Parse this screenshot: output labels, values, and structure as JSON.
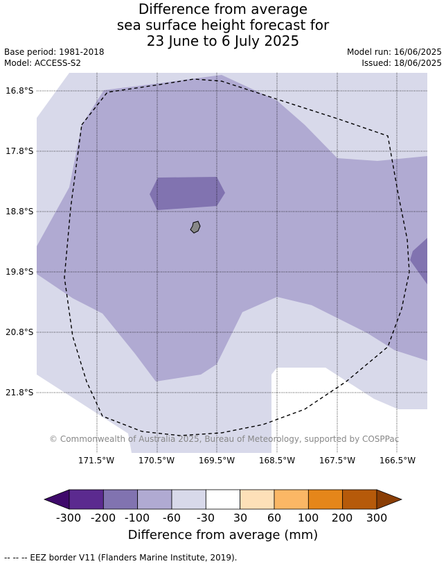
{
  "title": {
    "line1": "Difference from average",
    "line2": "sea surface height forecast for",
    "line3": "23 June to 6 July 2025"
  },
  "meta": {
    "base_period": "Base period: 1981-2018",
    "model": "Model: ACCESS-S2",
    "model_run": "Model run: 16/06/2025",
    "issued": "Issued: 18/06/2025"
  },
  "map": {
    "lon_labels": [
      "171.5°W",
      "170.5°W",
      "169.5°W",
      "168.5°W",
      "167.5°W",
      "166.5°W"
    ],
    "lat_labels": [
      "16.8°S",
      "17.8°S",
      "18.8°S",
      "19.8°S",
      "20.8°S",
      "21.8°S"
    ],
    "copyright": "© Commonwealth of Australia 2025, Bureau of Meteorology, supported by COSPPac",
    "colors": {
      "band_neg30_neg60": "#d8d9ea",
      "band_neg60_neg100": "#b0aad2",
      "band_neg100_neg200": "#8173b0",
      "land": "#888888",
      "eez_border": "#000000"
    }
  },
  "colorbar": {
    "tick_labels": [
      "-300",
      "-200",
      "-100",
      "-60",
      "-30",
      "30",
      "60",
      "100",
      "200",
      "300"
    ],
    "colors": [
      "#3f0a6b",
      "#5b2a8f",
      "#8173b0",
      "#b0aad2",
      "#d8d9ea",
      "#ffffff",
      "#fde0b8",
      "#fbb765",
      "#e5861a",
      "#b65a0a",
      "#8a3e05"
    ],
    "title": "Difference from average (mm)"
  },
  "footer": {
    "legend_text": "-- -- -- EEZ border V11 (Flanders Marine Institute, 2019)."
  }
}
